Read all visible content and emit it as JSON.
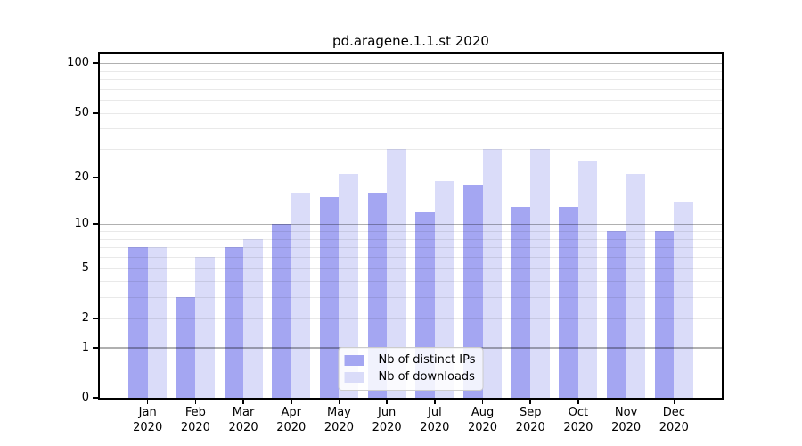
{
  "figure": {
    "title": "pd.aragene.1.1.st 2020"
  },
  "legend": {
    "items": [
      {
        "label": "Nb of distinct IPs",
        "series_key": "ips"
      },
      {
        "label": "Nb of downloads",
        "series_key": "downloads"
      }
    ],
    "position": "lower center"
  },
  "colors": {
    "ips": "#a4a6f2",
    "downloads": "#dadcf9",
    "grid_major": "#b0b0b0",
    "grid_minor": "#e9e9e9",
    "axis": "#000000"
  },
  "chart_data": {
    "type": "bar",
    "title": "pd.aragene.1.1.st 2020",
    "categories": [
      "Jan",
      "Feb",
      "Mar",
      "Apr",
      "May",
      "Jun",
      "Jul",
      "Aug",
      "Sep",
      "Oct",
      "Nov",
      "Dec"
    ],
    "category_year": "2020",
    "series": [
      {
        "name": "Nb of distinct IPs",
        "color_key": "ips",
        "values": [
          7,
          3,
          7,
          10,
          15,
          16,
          12,
          18,
          13,
          13,
          9,
          9
        ]
      },
      {
        "name": "Nb of downloads",
        "color_key": "downloads",
        "values": [
          7,
          6,
          8,
          16,
          21,
          30,
          19,
          30,
          30,
          25,
          21,
          14
        ]
      }
    ],
    "xlabel": "",
    "ylabel": "",
    "yscale": "log1p",
    "ylim": [
      0,
      115
    ],
    "yticks": [
      0,
      1,
      2,
      5,
      10,
      20,
      50,
      100
    ],
    "gridlines_major": [
      1,
      10,
      100
    ],
    "gridlines_minor": [
      2,
      3,
      4,
      5,
      6,
      7,
      8,
      9,
      20,
      30,
      40,
      50,
      60,
      70,
      80,
      90
    ],
    "grid": true,
    "legend_position": "lower center"
  }
}
